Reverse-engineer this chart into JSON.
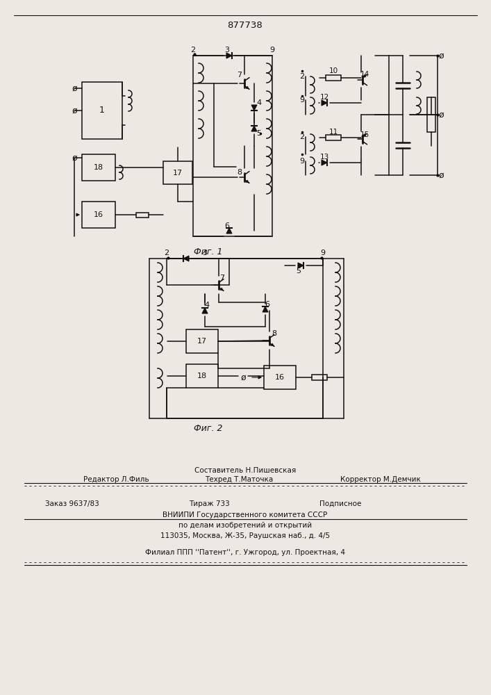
{
  "title": "877738",
  "fig1_label": "Фиг. 1",
  "fig2_label": "Фиг. 2",
  "footer_line1": "Составитель Н.Пишевская",
  "footer_ed": "Редактор Л.Филь",
  "footer_tech": "Техред Т.Маточка",
  "footer_corr": "Корректор М.Демчик",
  "footer_order": "Заказ 9637/83",
  "footer_print": "Тираж 733",
  "footer_sign": "Подписное",
  "footer_vniip": "ВНИИПИ Государственного комитета СССР",
  "footer_affairs": "по делам изобретений и открытий",
  "footer_addr": "113035, Москва, Ж-35, Раушская наб., д. 4/5",
  "footer_patent": "Филиал ППП ''Патент'', г. Ужгород, ул. Проектная, 4",
  "bg_color": "#ede9e2",
  "lc": "#111111"
}
